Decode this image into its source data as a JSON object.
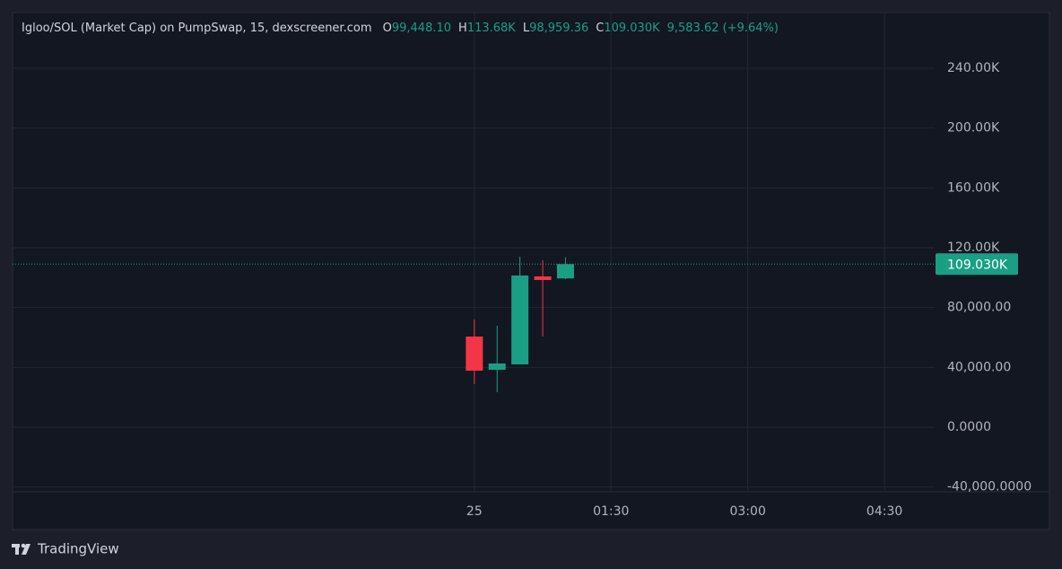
{
  "chart_data": {
    "type": "candlestick",
    "title": "Igloo/SOL (Market Cap) on PumpSwap, 15, dexscreener.com",
    "ohlc_legend": [
      {
        "label": "O",
        "value": "99,448.10"
      },
      {
        "label": "H",
        "value": "113.68K"
      },
      {
        "label": "L",
        "value": "98,959.36"
      },
      {
        "label": "C",
        "value": "109.030K"
      }
    ],
    "change": "9,583.62 (+9.64%)",
    "x": [
      0,
      15,
      30,
      45,
      60
    ],
    "open": [
      60600,
      38400,
      42000,
      100800,
      99448.1
    ],
    "high": [
      72000,
      67800,
      114000,
      111600,
      113680
    ],
    "low": [
      28800,
      23400,
      42000,
      60600,
      98959.36
    ],
    "close": [
      37800,
      42600,
      101400,
      98400,
      109030
    ],
    "up_color": "#1a9f85",
    "down_color": "#f23645",
    "xlim": [
      -304,
      303
    ],
    "xticks": [
      {
        "value": 0,
        "label": "25"
      },
      {
        "value": 90,
        "label": "01:30"
      },
      {
        "value": 180,
        "label": "03:00"
      },
      {
        "value": 270,
        "label": "04:30"
      }
    ],
    "ylim": [
      -43200,
      277200
    ],
    "yticks": [
      {
        "value": -40000,
        "label": "-40,000.0000"
      },
      {
        "value": 0,
        "label": "0.0000"
      },
      {
        "value": 40000,
        "label": "40,000.00"
      },
      {
        "value": 80000,
        "label": "80,000.00"
      },
      {
        "value": 120000,
        "label": "120.00K"
      },
      {
        "value": 160000,
        "label": "160.00K"
      },
      {
        "value": 200000,
        "label": "200.00K"
      },
      {
        "value": 240000,
        "label": "240.00K"
      }
    ],
    "grid": true,
    "last_price": {
      "value": 109030,
      "label": "109.030K"
    },
    "watermark": "TradingView"
  }
}
